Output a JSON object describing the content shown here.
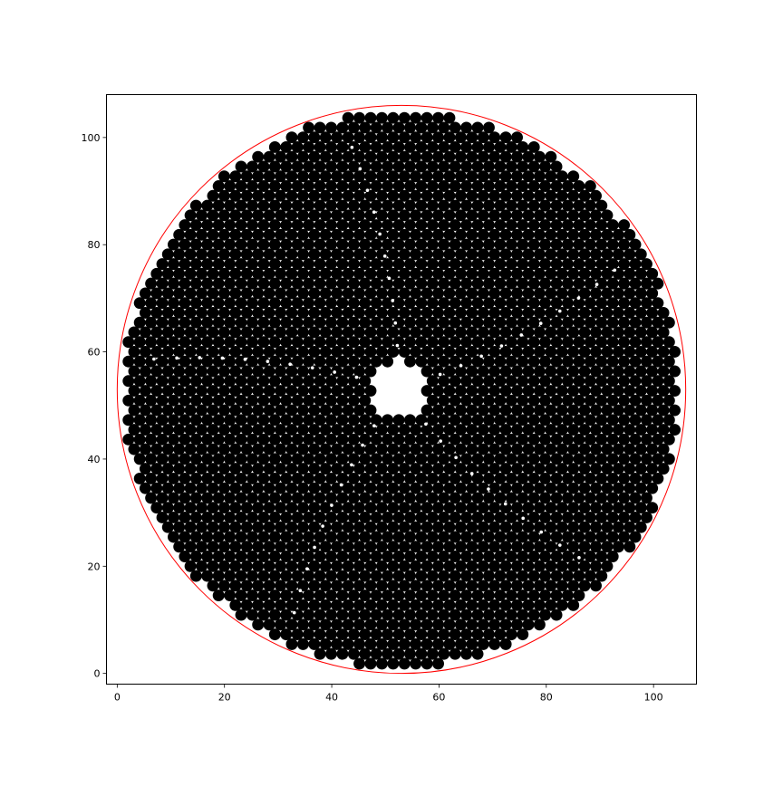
{
  "chart_data": {
    "type": "scatter",
    "title": "",
    "xlabel": "",
    "ylabel": "",
    "xlim": [
      -2,
      108
    ],
    "ylim": [
      -2,
      108
    ],
    "x_ticks": [
      0,
      20,
      40,
      60,
      80,
      100
    ],
    "y_ticks": [
      0,
      20,
      40,
      60,
      80,
      100
    ],
    "x_tick_labels": [
      "0",
      "20",
      "40",
      "60",
      "80",
      "100"
    ],
    "y_tick_labels": [
      "0",
      "20",
      "40",
      "60",
      "80",
      "100"
    ],
    "grid": false,
    "boundary_circle": {
      "center": [
        53,
        53
      ],
      "radius": 53,
      "color": "#ff0000"
    },
    "particles": {
      "color": "#000000",
      "diameter": 2.1,
      "packing": "hexagonal",
      "central_void": {
        "center": [
          52.5,
          53
        ],
        "radius": 5.2
      },
      "defect_color": "#ffffff"
    },
    "series": [
      {
        "values": []
      }
    ]
  }
}
